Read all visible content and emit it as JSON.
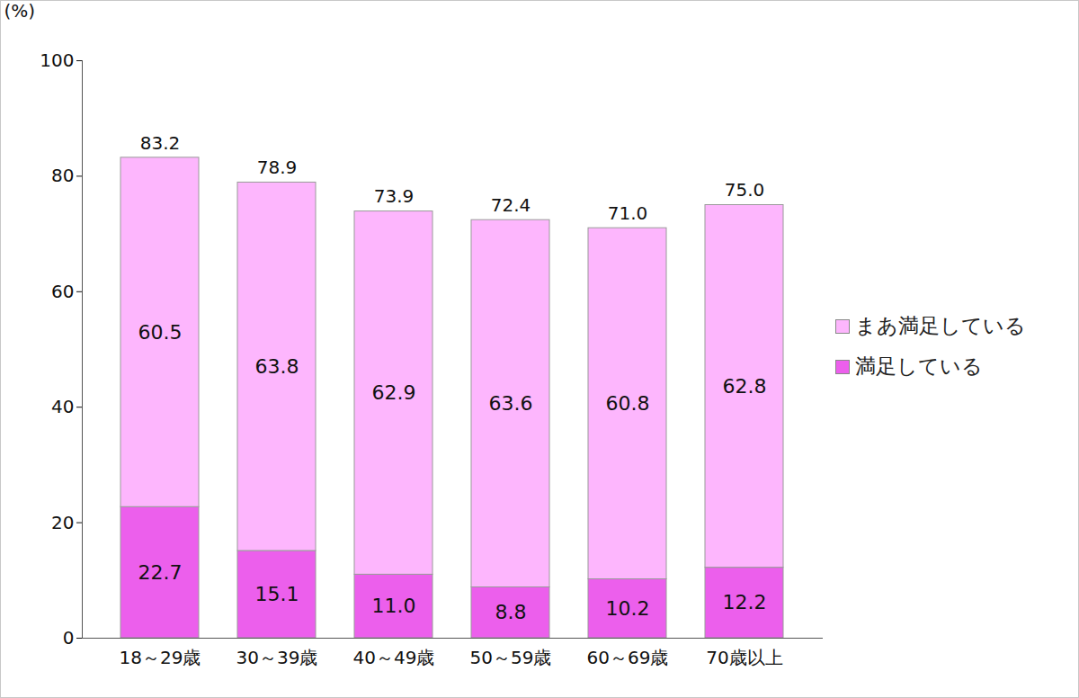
{
  "chart_data": {
    "type": "bar",
    "stacked": true,
    "data_labels": true,
    "grid": false,
    "legend": "right",
    "y_label": "(%)",
    "categories": [
      "18～29歳",
      "30～39歳",
      "40～49歳",
      "50～59歳",
      "60～69歳",
      "70歳以上"
    ],
    "series": [
      {
        "name": "まあ満足している",
        "color": "#fdb6fd",
        "values": [
          60.5,
          63.8,
          62.9,
          63.6,
          60.8,
          62.8
        ]
      },
      {
        "name": "満足している",
        "color": "#ec5fec",
        "values": [
          22.7,
          15.1,
          11.0,
          8.8,
          10.2,
          12.2
        ],
        "value_labels": [
          "22.7",
          "15.1",
          "11.0",
          "8.8",
          "10.2",
          "12.2"
        ]
      }
    ],
    "totals": [
      83.2,
      78.9,
      73.9,
      72.4,
      71.0,
      75.0
    ],
    "total_labels": [
      "83.2",
      "78.9",
      "73.9",
      "72.4",
      "71.0",
      "75.0"
    ],
    "ylim": [
      0,
      100
    ],
    "yticks": [
      0,
      20,
      40,
      60,
      80,
      100
    ]
  }
}
